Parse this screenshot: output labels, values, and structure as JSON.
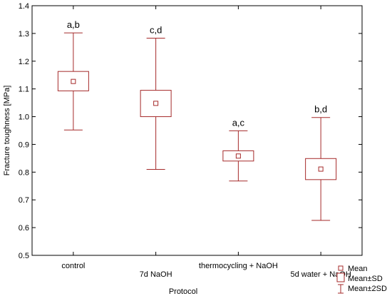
{
  "chart_data": {
    "type": "boxplot",
    "xlabel": "Protocol",
    "ylabel": "Fracture toughness [MPa]",
    "ylim": [
      0.5,
      1.4
    ],
    "yticks": [
      0.5,
      0.6,
      0.7,
      0.8,
      0.9,
      1.0,
      1.1,
      1.2,
      1.3,
      1.4
    ],
    "ytick_labels": [
      "0.5",
      "0.6",
      "0.7",
      "0.8",
      "0.9",
      "1.0",
      "1.1",
      "1.2",
      "1.3",
      "1.4"
    ],
    "grid": false,
    "legend_position": "bottom-right",
    "color": "#a52a2a",
    "categories": [
      "control",
      "7d NaOH",
      "thermocycling + NaOH",
      "5d water + NaOH"
    ],
    "series": [
      {
        "mean": [
          1.127,
          1.048,
          0.858,
          0.811
        ],
        "sd_low": [
          1.093,
          1.0,
          0.84,
          0.773
        ],
        "sd_high": [
          1.163,
          1.095,
          0.877,
          0.849
        ],
        "sd2_low": [
          0.952,
          0.81,
          0.768,
          0.626
        ],
        "sd2_high": [
          1.302,
          1.283,
          0.949,
          0.997
        ]
      }
    ],
    "annotations": [
      "a,b",
      "c,d",
      "a,c",
      "b,d"
    ],
    "legend": [
      "Mean",
      "Mean±SD",
      "Mean±2SD"
    ]
  }
}
